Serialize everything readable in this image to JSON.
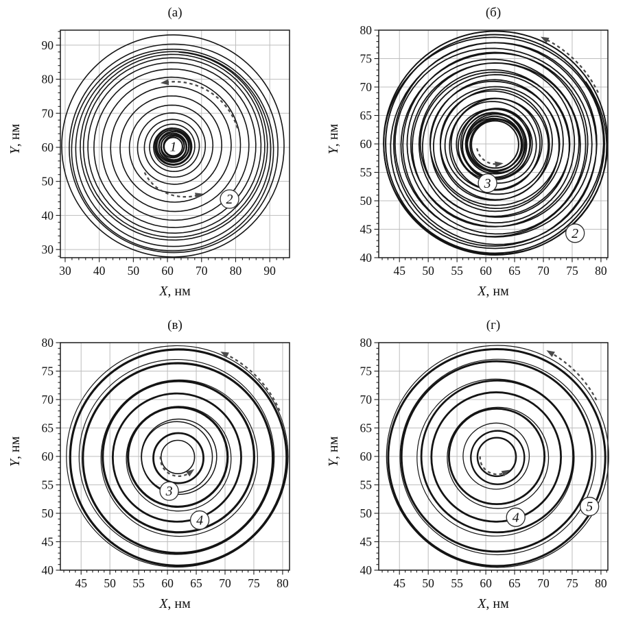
{
  "figure": {
    "background": "#ffffff"
  },
  "colors": {
    "trajectory": "#141414",
    "grid": "#bdbdbd",
    "frame": "#1a1a1a",
    "arrow": "#4a4a4a",
    "marker_fill": "#ffffff",
    "marker_stroke": "#2b2b2b",
    "text": "#111111"
  },
  "chart_data": [
    {
      "id": "a",
      "type": "line",
      "title": "(а)",
      "xlabel_var": "X",
      "xlabel_unit": ", нм",
      "ylabel_var": "Y",
      "ylabel_unit": ", нм",
      "xlim": [
        28.6,
        95.8
      ],
      "ylim": [
        27.6,
        94.4
      ],
      "xticks": [
        30,
        40,
        50,
        60,
        70,
        80,
        90
      ],
      "yticks": [
        30,
        40,
        50,
        60,
        70,
        80,
        90
      ],
      "minor_step": 2,
      "grid": true,
      "legend": "none",
      "center": [
        61.7,
        60.2
      ],
      "trajectory": {
        "kind": "spiral",
        "stroke_w": 1.6,
        "phase": 1.6,
        "inner_circles": [
          [
            2.7,
            2,
            0,
            0
          ],
          [
            3.04,
            2,
            0.18,
            0.1
          ],
          [
            3.38,
            2,
            -0.15,
            0.12
          ],
          [
            3.72,
            2,
            0.1,
            -0.15
          ],
          [
            4.06,
            2,
            -0.12,
            -0.1
          ],
          [
            4.4,
            2,
            0.15,
            0.05
          ],
          [
            4.74,
            2,
            -0.08,
            0.15
          ],
          [
            5.08,
            2,
            0.05,
            -0.12
          ],
          [
            5.4,
            2,
            0,
            0
          ]
        ],
        "turn_radii": [
          5.5,
          6.6,
          8.0,
          9.9,
          12.2,
          14.9,
          17.7,
          20.4,
          22.8,
          24.7,
          26.1,
          27.1,
          27.8
        ],
        "wobble": 0,
        "outer_loops": [
          [
            28.6,
            1.6,
            0,
            -0.7
          ],
          [
            29.6,
            1.6,
            -0.2,
            -1.0
          ],
          [
            30.6,
            1.6,
            0.1,
            -0.5
          ],
          [
            32.6,
            1.6,
            -0.1,
            0.2
          ]
        ]
      },
      "markers": [
        {
          "label": "1",
          "x": 61.7,
          "y": 60.2,
          "outline": false
        },
        {
          "label": "2",
          "x": 78.2,
          "y": 44.8,
          "outline": true
        }
      ],
      "arrows": [
        {
          "c": [
            61.7,
            60.2
          ],
          "r0": 19.6,
          "r1": 19.0,
          "a0": 16,
          "a1": 99
        },
        {
          "c": [
            61.7,
            60.2
          ],
          "r0": 11.3,
          "r1": 16.2,
          "a0": 222,
          "a1": 300
        }
      ]
    },
    {
      "id": "b",
      "type": "line",
      "title": "(б)",
      "xlabel_var": "X",
      "xlabel_unit": ", нм",
      "ylabel_var": "Y",
      "ylabel_unit": ", нм",
      "xlim": [
        41.4,
        81.2
      ],
      "ylim": [
        40,
        80
      ],
      "xticks": [
        45,
        50,
        55,
        60,
        65,
        70,
        75,
        80
      ],
      "yticks": [
        40,
        45,
        50,
        55,
        60,
        65,
        70,
        75,
        80
      ],
      "minor_step": 1,
      "grid": true,
      "legend": "none",
      "center": [
        61.6,
        59.9
      ],
      "trajectory": {
        "kind": "spiral",
        "stroke_w": 1.8,
        "phase": 0.7,
        "inner_circles": [
          [
            4.1,
            2,
            0,
            0
          ],
          [
            4.45,
            2,
            0.12,
            -0.1
          ],
          [
            4.8,
            2,
            -0.1,
            0.1
          ],
          [
            5.2,
            2,
            0.1,
            0.1
          ],
          [
            5.6,
            1.8,
            -0.1,
            -0.1
          ],
          [
            6.0,
            1.8,
            0.05,
            0.12
          ]
        ],
        "spiral": {
          "start": 4.2,
          "end": 19.3,
          "turns": 25
        },
        "wobble": 0.3,
        "outer_loops": [
          [
            19.0,
            2,
            0,
            0.1
          ],
          [
            19.45,
            2,
            0.1,
            0.25
          ]
        ]
      },
      "markers": [
        {
          "label": "3",
          "x": 60.3,
          "y": 53.1,
          "outline": true
        },
        {
          "label": "2",
          "x": 75.5,
          "y": 44.3,
          "outline": true
        }
      ],
      "arrows": [
        {
          "c": [
            61.6,
            59.9
          ],
          "r0": 20.1,
          "r1": 20.5,
          "a0": 27,
          "a1": 66
        },
        {
          "c": [
            61.6,
            59.9
          ],
          "r0": 3.2,
          "r1": 3.5,
          "a0": 192,
          "a1": 286
        }
      ]
    },
    {
      "id": "v",
      "type": "line",
      "title": "(в)",
      "xlabel_var": "X",
      "xlabel_unit": ", нм",
      "ylabel_var": "Y",
      "ylabel_unit": ", нм",
      "xlim": [
        41.4,
        81.2
      ],
      "ylim": [
        40,
        80
      ],
      "xticks": [
        45,
        50,
        55,
        60,
        65,
        70,
        75,
        80
      ],
      "yticks": [
        40,
        45,
        50,
        55,
        60,
        65,
        70,
        75,
        80
      ],
      "minor_step": 1,
      "grid": true,
      "legend": "none",
      "center": [
        61.8,
        59.8
      ],
      "trajectory": {
        "kind": "rings",
        "rings": [
          [
            2.9,
            1.6,
            0,
            0.1
          ],
          [
            4.35,
            2.8,
            0.1,
            -0.1
          ],
          [
            6.15,
            1.5,
            -0.15,
            0.1
          ],
          [
            6.55,
            1.5,
            0.2,
            0.15
          ],
          [
            8.65,
            3.2,
            0,
            0.1
          ],
          [
            9.1,
            1.3,
            0.15,
            -0.2
          ],
          [
            11.15,
            2.8,
            -0.15,
            0
          ],
          [
            13.15,
            3.2,
            0.1,
            0.15
          ],
          [
            13.6,
            1.2,
            0.25,
            -0.1
          ],
          [
            16.5,
            3.2,
            0,
            -0.1
          ],
          [
            16.95,
            1.2,
            -0.2,
            0.1
          ],
          [
            18.8,
            3.2,
            0.1,
            0
          ],
          [
            19.25,
            1.2,
            -0.1,
            0.2
          ]
        ]
      },
      "markers": [
        {
          "label": "3",
          "x": 60.3,
          "y": 53.9,
          "outline": true
        },
        {
          "label": "4",
          "x": 65.6,
          "y": 48.8,
          "outline": true
        }
      ],
      "arrows": [
        {
          "c": [
            61.8,
            59.8
          ],
          "r0": 19.5,
          "r1": 20.0,
          "a0": 25,
          "a1": 67
        },
        {
          "c": [
            61.8,
            59.8
          ],
          "r0": 3.0,
          "r1": 3.4,
          "a0": 176,
          "a1": 317
        }
      ]
    },
    {
      "id": "g",
      "type": "line",
      "title": "(г)",
      "xlabel_var": "X",
      "xlabel_unit": ", нм",
      "ylabel_var": "Y",
      "ylabel_unit": ", нм",
      "xlim": [
        41.4,
        81.2
      ],
      "ylim": [
        40,
        80
      ],
      "xticks": [
        45,
        50,
        55,
        60,
        65,
        70,
        75,
        80
      ],
      "yticks": [
        40,
        45,
        50,
        55,
        60,
        65,
        70,
        75,
        80
      ],
      "minor_step": 1,
      "grid": true,
      "legend": "none",
      "center": [
        61.9,
        59.9
      ],
      "trajectory": {
        "kind": "rings",
        "rings": [
          [
            3.35,
            2.4,
            0,
            0
          ],
          [
            4.65,
            2.4,
            0.15,
            -0.1
          ],
          [
            5.75,
            1.3,
            -0.1,
            0.15
          ],
          [
            8.3,
            2.8,
            0,
            0.1
          ],
          [
            8.8,
            1.3,
            0.2,
            -0.15
          ],
          [
            11.25,
            2.8,
            -0.1,
            0
          ],
          [
            13.2,
            2.8,
            0.1,
            0.1
          ],
          [
            13.65,
            1.2,
            -0.2,
            -0.1
          ],
          [
            16.55,
            3.0,
            0,
            0.1
          ],
          [
            17.0,
            1.2,
            0.2,
            0
          ],
          [
            18.85,
            3.0,
            0,
            -0.1
          ],
          [
            19.3,
            1.2,
            0.15,
            0.1
          ]
        ]
      },
      "markers": [
        {
          "label": "4",
          "x": 65.2,
          "y": 49.3,
          "outline": true
        },
        {
          "label": "5",
          "x": 78.0,
          "y": 51.2,
          "outline": true
        }
      ],
      "arrows": [
        {
          "c": [
            61.9,
            59.9
          ],
          "r0": 20.0,
          "r1": 20.6,
          "a0": 30,
          "a1": 64
        },
        {
          "c": [
            61.9,
            59.9
          ],
          "r0": 2.9,
          "r1": 3.1,
          "a0": 178,
          "a1": 307
        }
      ]
    }
  ]
}
